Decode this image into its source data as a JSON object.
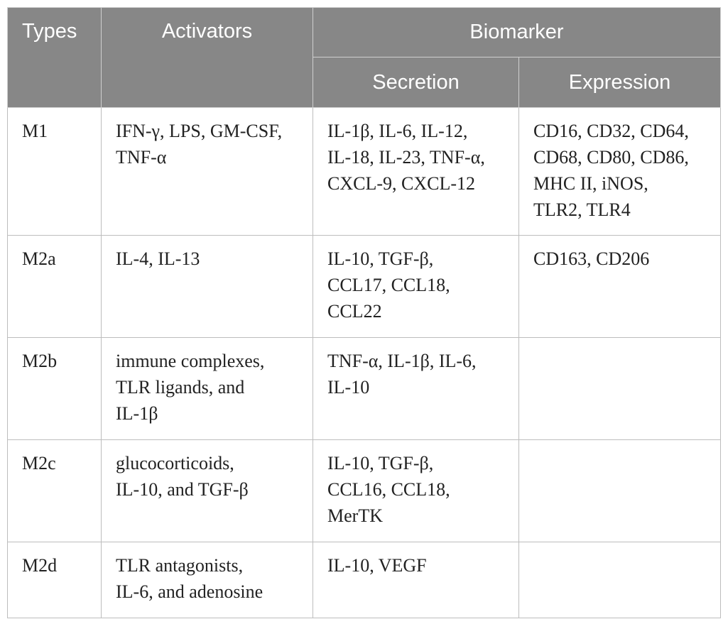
{
  "header": {
    "types": "Types",
    "activators": "Activators",
    "biomarker": "Biomarker",
    "secretion": "Secretion",
    "expression": "Expression"
  },
  "rows": [
    {
      "type": "M1",
      "activators": "IFN-γ, LPS, GM-CSF,\nTNF-α",
      "secretion": "IL-1β, IL-6, IL-12,\nIL-18, IL-23, TNF-α,\nCXCL-9, CXCL-12",
      "expression": "CD16, CD32, CD64,\nCD68, CD80, CD86,\nMHC II, iNOS,\nTLR2, TLR4"
    },
    {
      "type": "M2a",
      "activators": "IL-4, IL-13",
      "secretion": "IL-10, TGF-β,\nCCL17, CCL18,\nCCL22",
      "expression": "CD163, CD206"
    },
    {
      "type": "M2b",
      "activators": "immune complexes,\nTLR ligands, and\nIL-1β",
      "secretion": "TNF-α, IL-1β, IL-6,\nIL-10",
      "expression": ""
    },
    {
      "type": "M2c",
      "activators": "glucocorticoids,\nIL-10, and TGF-β",
      "secretion": "IL-10, TGF-β,\nCCL16, CCL18,\nMerTK",
      "expression": ""
    },
    {
      "type": "M2d",
      "activators": "TLR antagonists,\nIL-6, and adenosine",
      "secretion": "IL-10, VEGF",
      "expression": ""
    }
  ]
}
